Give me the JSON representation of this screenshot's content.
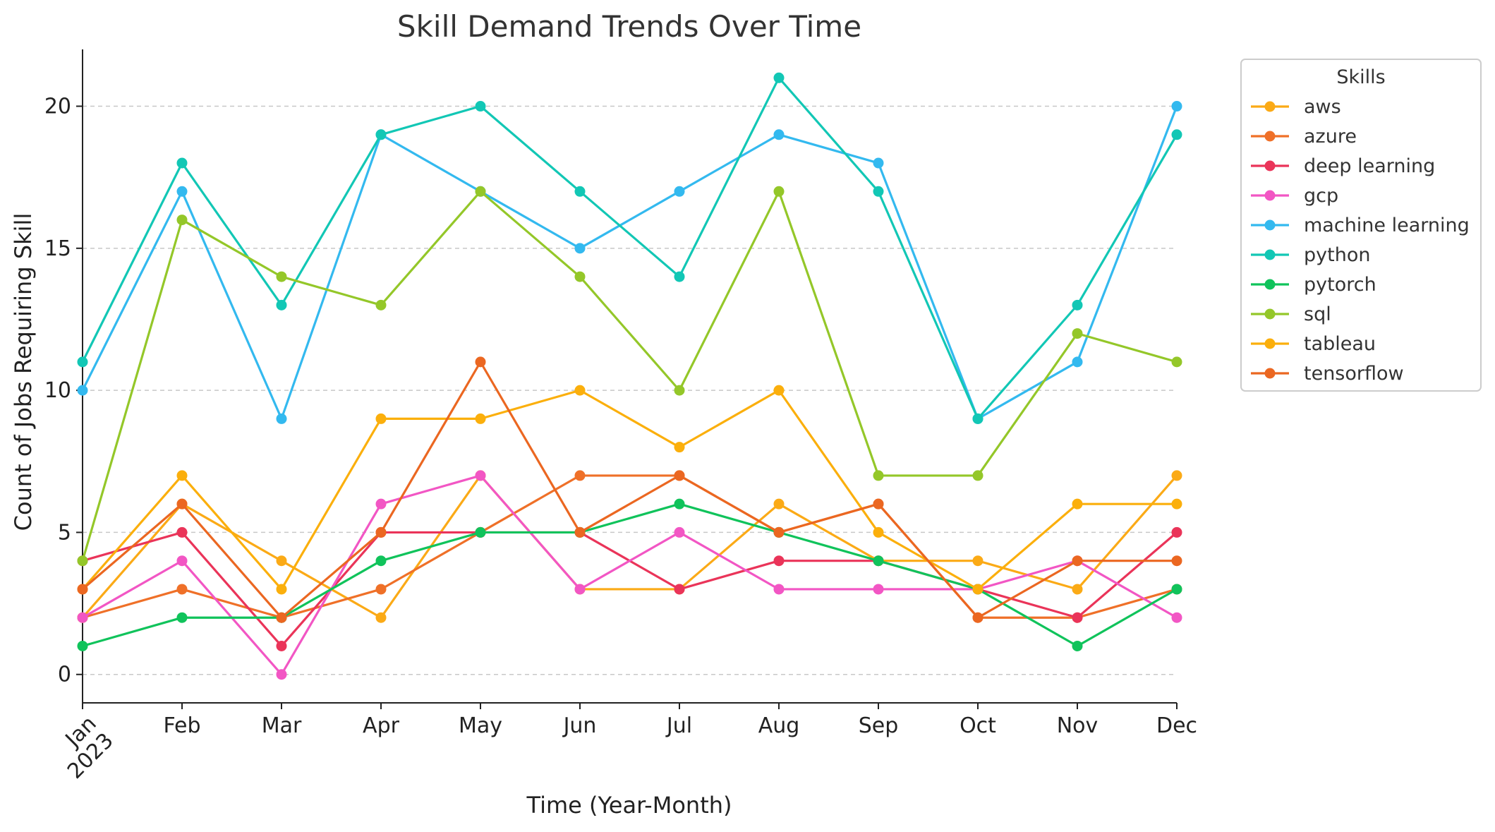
{
  "chart_data": {
    "type": "line",
    "title": "Skill Demand Trends Over Time",
    "xlabel": "Time (Year-Month)",
    "ylabel": "Count of Jobs Requiring Skill",
    "x_tick_labels": [
      {
        "lines": [
          "Jan",
          "2023"
        ]
      },
      {
        "lines": [
          "Feb"
        ]
      },
      {
        "lines": [
          "Mar"
        ]
      },
      {
        "lines": [
          "Apr"
        ]
      },
      {
        "lines": [
          "May"
        ]
      },
      {
        "lines": [
          "Jun"
        ]
      },
      {
        "lines": [
          "Jul"
        ]
      },
      {
        "lines": [
          "Aug"
        ]
      },
      {
        "lines": [
          "Sep"
        ]
      },
      {
        "lines": [
          "Oct"
        ]
      },
      {
        "lines": [
          "Nov"
        ]
      },
      {
        "lines": [
          "Dec"
        ]
      }
    ],
    "x": [
      "2023-01",
      "2023-02",
      "2023-03",
      "2023-04",
      "2023-05",
      "2023-06",
      "2023-07",
      "2023-08",
      "2023-09",
      "2023-10",
      "2023-11",
      "2023-12"
    ],
    "y_ticks": [
      0,
      5,
      10,
      15,
      20
    ],
    "ylim": [
      -1,
      22
    ],
    "grid": "horizontal dashed",
    "legend_title": "Skills",
    "legend_position": "outside-top-right",
    "series": [
      {
        "name": "aws",
        "color": "#fbaa16",
        "values": [
          2,
          6,
          4,
          2,
          7,
          3,
          3,
          6,
          4,
          4,
          3,
          7
        ]
      },
      {
        "name": "azure",
        "color": "#ef7028",
        "values": [
          2,
          3,
          2,
          3,
          5,
          7,
          7,
          5,
          6,
          2,
          2,
          3
        ]
      },
      {
        "name": "deep learning",
        "color": "#ea3459",
        "values": [
          4,
          5,
          1,
          5,
          5,
          5,
          3,
          4,
          4,
          3,
          2,
          5
        ]
      },
      {
        "name": "gcp",
        "color": "#f256c4",
        "values": [
          2,
          4,
          0,
          6,
          7,
          3,
          5,
          3,
          3,
          3,
          4,
          2
        ]
      },
      {
        "name": "machine learning",
        "color": "#33b9ef",
        "values": [
          10,
          17,
          9,
          19,
          17,
          15,
          17,
          19,
          18,
          9,
          11,
          20
        ]
      },
      {
        "name": "python",
        "color": "#12c7b5",
        "values": [
          11,
          18,
          13,
          19,
          20,
          17,
          14,
          21,
          17,
          9,
          13,
          19
        ]
      },
      {
        "name": "pytorch",
        "color": "#10c35b",
        "values": [
          1,
          2,
          2,
          4,
          5,
          5,
          6,
          5,
          4,
          3,
          1,
          3
        ]
      },
      {
        "name": "sql",
        "color": "#94c729",
        "values": [
          4,
          16,
          14,
          13,
          17,
          14,
          10,
          17,
          7,
          7,
          12,
          11
        ]
      },
      {
        "name": "tableau",
        "color": "#fbaf0c",
        "values": [
          3,
          7,
          3,
          9,
          9,
          10,
          8,
          10,
          5,
          3,
          6,
          6
        ]
      },
      {
        "name": "tensorflow",
        "color": "#eb6721",
        "values": [
          3,
          6,
          2,
          5,
          11,
          5,
          7,
          5,
          6,
          2,
          4,
          4
        ]
      }
    ]
  }
}
